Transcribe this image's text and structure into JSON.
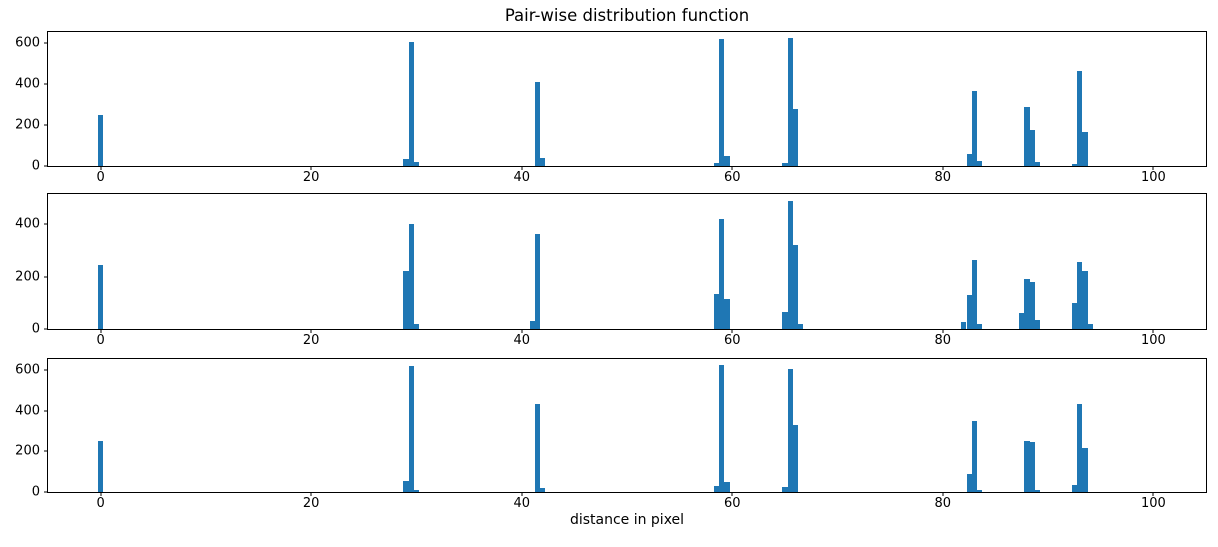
{
  "figure": {
    "title": "Pair-wise distribution function",
    "xlabel": "distance in pixel",
    "bar_color": "#1f77b4",
    "text_color": "#000000",
    "background": "#ffffff"
  },
  "chart_data": [
    {
      "type": "bar",
      "subplot": "top",
      "title": "Pair-wise distribution function",
      "xlabel": "",
      "ylabel": "",
      "xlim": [
        -5,
        105
      ],
      "ylim": [
        0,
        656
      ],
      "xticks": [
        0,
        20,
        40,
        60,
        80,
        100
      ],
      "yticks": [
        0,
        200,
        400,
        600
      ],
      "bin_width": 0.5,
      "grid": false,
      "legend": null,
      "bars": [
        [
          0,
          250
        ],
        [
          29,
          35
        ],
        [
          29.5,
          605
        ],
        [
          30,
          20
        ],
        [
          41.5,
          410
        ],
        [
          42,
          40
        ],
        [
          58.5,
          15
        ],
        [
          59,
          620
        ],
        [
          59.5,
          50
        ],
        [
          65,
          15
        ],
        [
          65.5,
          625
        ],
        [
          66,
          280
        ],
        [
          82.5,
          60
        ],
        [
          83,
          365
        ],
        [
          83.5,
          25
        ],
        [
          88,
          290
        ],
        [
          88.5,
          175
        ],
        [
          89,
          20
        ],
        [
          92.5,
          10
        ],
        [
          93,
          465
        ],
        [
          93.5,
          165
        ]
      ]
    },
    {
      "type": "bar",
      "subplot": "middle",
      "title": "",
      "xlabel": "",
      "ylabel": "",
      "xlim": [
        -5,
        105
      ],
      "ylim": [
        0,
        516
      ],
      "xticks": [
        0,
        20,
        40,
        60,
        80,
        100
      ],
      "yticks": [
        0,
        200,
        400
      ],
      "bin_width": 0.5,
      "grid": false,
      "legend": null,
      "bars": [
        [
          0,
          245
        ],
        [
          29,
          220
        ],
        [
          29.5,
          400
        ],
        [
          30,
          20
        ],
        [
          41,
          30
        ],
        [
          41.5,
          365
        ],
        [
          58.5,
          135
        ],
        [
          59,
          420
        ],
        [
          59.5,
          115
        ],
        [
          65,
          65
        ],
        [
          65.5,
          490
        ],
        [
          66,
          320
        ],
        [
          66.5,
          20
        ],
        [
          82,
          25
        ],
        [
          82.5,
          130
        ],
        [
          83,
          265
        ],
        [
          83.5,
          20
        ],
        [
          87.5,
          60
        ],
        [
          88,
          190
        ],
        [
          88.5,
          180
        ],
        [
          89,
          35
        ],
        [
          92.5,
          100
        ],
        [
          93,
          255
        ],
        [
          93.5,
          220
        ],
        [
          94,
          20
        ]
      ]
    },
    {
      "type": "bar",
      "subplot": "bottom",
      "title": "",
      "xlabel": "distance in pixel",
      "ylabel": "",
      "xlim": [
        -5,
        105
      ],
      "ylim": [
        0,
        656
      ],
      "xticks": [
        0,
        20,
        40,
        60,
        80,
        100
      ],
      "yticks": [
        0,
        200,
        400,
        600
      ],
      "bin_width": 0.5,
      "grid": false,
      "legend": null,
      "bars": [
        [
          0,
          250
        ],
        [
          29,
          55
        ],
        [
          29.5,
          620
        ],
        [
          30,
          10
        ],
        [
          41.5,
          435
        ],
        [
          42,
          20
        ],
        [
          58.5,
          30
        ],
        [
          59,
          625
        ],
        [
          59.5,
          50
        ],
        [
          65,
          25
        ],
        [
          65.5,
          605
        ],
        [
          66,
          330
        ],
        [
          82.5,
          90
        ],
        [
          83,
          350
        ],
        [
          83.5,
          10
        ],
        [
          88,
          250
        ],
        [
          88.5,
          245
        ],
        [
          89,
          10
        ],
        [
          92.5,
          35
        ],
        [
          93,
          435
        ],
        [
          93.5,
          215
        ]
      ]
    }
  ]
}
